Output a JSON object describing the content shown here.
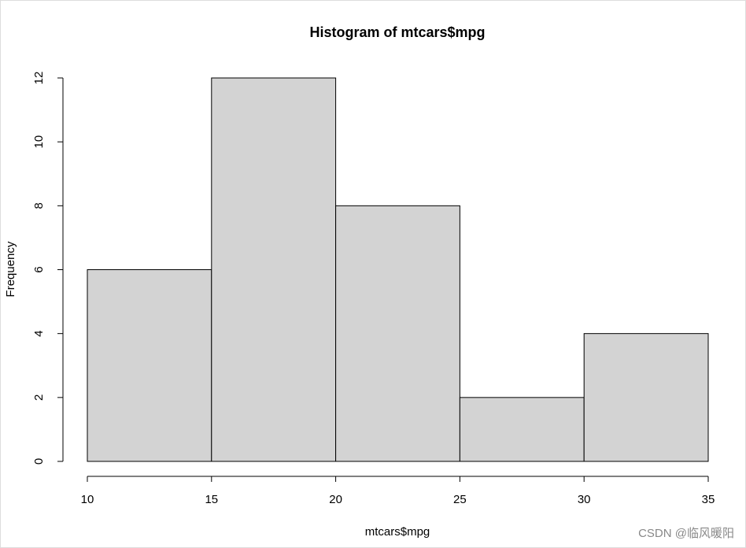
{
  "chart_data": {
    "type": "histogram",
    "title": "Histogram of mtcars$mpg",
    "x_label": "mtcars$mpg",
    "y_label": "Frequency",
    "bins": [
      10,
      15,
      20,
      25,
      30,
      35
    ],
    "values": [
      6,
      12,
      8,
      2,
      4
    ],
    "color": "#d3d3d3",
    "edge_color": "#000000",
    "xlim": [
      10,
      35
    ],
    "xticks": [
      10,
      15,
      20,
      25,
      30,
      35
    ],
    "ylim": [
      0,
      12
    ],
    "yticks": [
      0,
      2,
      4,
      6,
      8,
      10,
      12
    ],
    "watermark": "CSDN @临风暖阳"
  }
}
